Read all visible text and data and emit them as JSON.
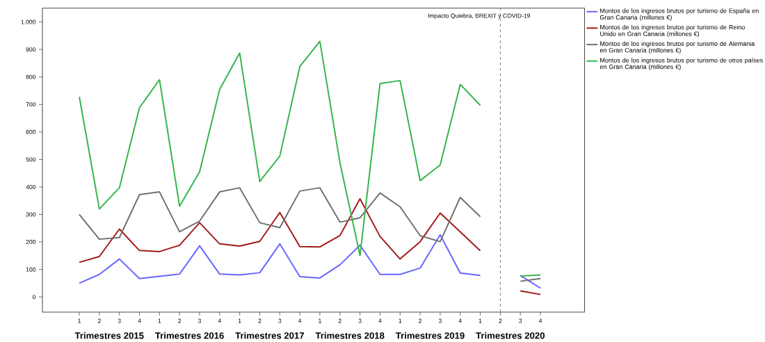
{
  "chart_data": {
    "type": "line",
    "categories": [
      "1",
      "2",
      "3",
      "4",
      "1",
      "2",
      "3",
      "4",
      "1",
      "2",
      "3",
      "4",
      "1",
      "2",
      "3",
      "4",
      "1",
      "2",
      "3",
      "4",
      "1",
      "2",
      "3",
      "4"
    ],
    "series": [
      {
        "name": "Montos de los ingresos brutos por turismo de España en Gran Canaria (millones €)",
        "color": "#6666ff",
        "values": [
          50,
          82,
          138,
          67,
          75,
          83,
          186,
          83,
          80,
          88,
          193,
          74,
          69,
          117,
          188,
          82,
          82,
          105,
          226,
          87,
          78,
          null,
          78,
          32
        ]
      },
      {
        "name": "Montos de los ingresos brutos por turismo de Reino Unido en Gran Canaria (millones €)",
        "color": "#a01a1a",
        "values": [
          126,
          147,
          247,
          169,
          165,
          188,
          270,
          193,
          185,
          202,
          307,
          183,
          182,
          223,
          357,
          220,
          138,
          201,
          305,
          237,
          168,
          null,
          22,
          9
        ]
      },
      {
        "name": "Montos de los ingresos brutos por turismo de Alemania en Gran Canaria (millones €)",
        "color": "#707070",
        "values": [
          300,
          210,
          216,
          372,
          382,
          237,
          276,
          382,
          397,
          270,
          252,
          385,
          397,
          272,
          288,
          378,
          328,
          223,
          201,
          362,
          292,
          null,
          57,
          67
        ]
      },
      {
        "name": "Montos de los ingresos brutos por turismo de otros países en Gran Canaria (millones €)",
        "color": "#33b54a",
        "values": [
          728,
          320,
          397,
          688,
          790,
          330,
          455,
          755,
          887,
          420,
          512,
          838,
          930,
          488,
          151,
          776,
          787,
          423,
          480,
          773,
          697,
          null,
          76,
          80
        ]
      }
    ],
    "ylim": [
      -55,
      1050
    ],
    "yticks": [
      0,
      100,
      200,
      300,
      400,
      500,
      600,
      700,
      800,
      900,
      {
        "value": 1000,
        "label": "1.000"
      }
    ],
    "annotations": [
      "Impacto Quiebra, BREXIT y COVID-19",
      "Trimestres 2015",
      "Trimestres 2016",
      "Trimestres 2017",
      "Trimestres 2018",
      "Trimestres 2019",
      "Trimestres 2020"
    ],
    "legend": "right",
    "marker": "none",
    "line_style": "solid"
  }
}
